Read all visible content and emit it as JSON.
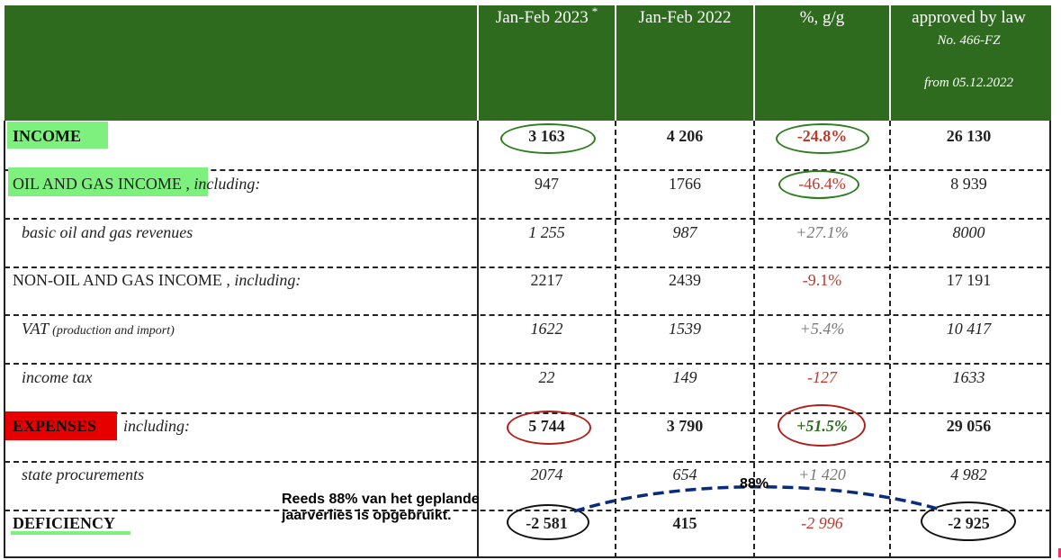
{
  "header": {
    "col1": "Jan-Feb 2023",
    "col1_marker": "*",
    "col2": "Jan-Feb 2022",
    "col3": "%, g/g",
    "col4_line1": "approved by law",
    "col4_line2": "No. 466-FZ",
    "col4_line3": "from 05.12.2022"
  },
  "rows": [
    {
      "label": "INCOME",
      "suffix": "",
      "c1": "3 163",
      "c2": "4 206",
      "c3": "-24.8%",
      "c4": "26 130"
    },
    {
      "label": "OIL AND GAS INCOME",
      "suffix": " , including:",
      "c1": "947",
      "c2": "1766",
      "c3": "-46.4%",
      "c4": "8 939"
    },
    {
      "label": "basic oil and gas revenues",
      "suffix": "",
      "c1": "1 255",
      "c2": "987",
      "c3": "+27.1%",
      "c4": "8000"
    },
    {
      "label": "NON-OIL AND GAS INCOME",
      "suffix": " , including:",
      "c1": "2217",
      "c2": "2439",
      "c3": "-9.1%",
      "c4": "17 191"
    },
    {
      "label": "VAT",
      "suffix": "(production and import)",
      "c1": "1622",
      "c2": "1539",
      "c3": "+5.4%",
      "c4": "10 417"
    },
    {
      "label": "income tax",
      "suffix": "",
      "c1": "22",
      "c2": "149",
      "c3": "-127",
      "c4": "1633"
    },
    {
      "label": "EXPENSES",
      "suffix": "including:",
      "c1": "5 744",
      "c2": "3 790",
      "c3": "+51.5%",
      "c4": "29 056"
    },
    {
      "label": "state procurements",
      "suffix": "",
      "c1": "2074",
      "c2": "654",
      "c3": "+1 420",
      "c4": "4 982"
    },
    {
      "label": "DEFICIENCY",
      "suffix": "",
      "c1": "-2 581",
      "c2": "415",
      "c3": "-2 996",
      "c4": "-2 925"
    }
  ],
  "annotation": {
    "note_line1": "Reeds 88% van het geplande",
    "note_line2": "jaarverlies is opgebruikt.",
    "arc_label": "88%",
    "arc_color": "#0a2a7a"
  },
  "colors": {
    "header_bg": "#2e6b1f",
    "highlight_green": "#7df07d",
    "highlight_red": "#e60000",
    "negative": "#c0392b",
    "oval_green": "#2e7d1f",
    "oval_red": "#b0201a"
  }
}
